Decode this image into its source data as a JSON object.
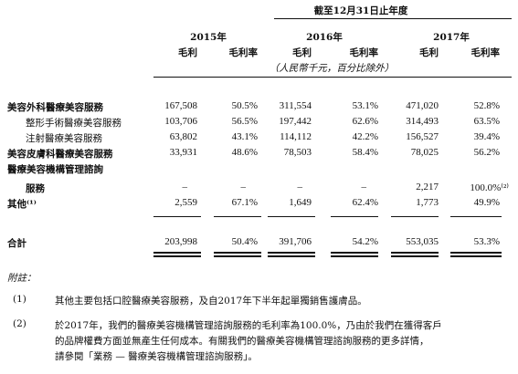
{
  "header": {
    "period_title": "截至12月31日止年度",
    "units": "（人民幣千元，百分比除外）",
    "years": [
      "2015年",
      "2016年",
      "2017年"
    ],
    "col_labels": [
      "毛利",
      "毛利率",
      "毛利",
      "毛利率",
      "毛利",
      "毛利率"
    ]
  },
  "rows": [
    {
      "label": "美容外科醫療美容服務",
      "bold": true,
      "values": [
        "167,508",
        "50.5%",
        "311,554",
        "53.1%",
        "471,020",
        "52.8%"
      ]
    },
    {
      "label": "整形手術醫療美容服務",
      "bold": false,
      "indent": 1,
      "values": [
        "103,706",
        "56.5%",
        "197,442",
        "62.6%",
        "314,493",
        "63.5%"
      ]
    },
    {
      "label": "注射醫療美容服務",
      "bold": false,
      "indent": 1,
      "values": [
        "63,802",
        "43.1%",
        "114,112",
        "42.2%",
        "156,527",
        "39.4%"
      ]
    },
    {
      "label": "美容皮膚科醫療美容服務",
      "bold": true,
      "values": [
        "33,931",
        "48.6%",
        "78,503",
        "58.4%",
        "78,025",
        "56.2%"
      ]
    },
    {
      "label": "醫療美容機構管理諮詢",
      "bold": true,
      "values": []
    },
    {
      "label": "服務",
      "bold": true,
      "indent": 1,
      "values": [
        "–",
        "–",
        "–",
        "–",
        "2,217",
        "100.0%⁽²⁾"
      ]
    },
    {
      "label": "其他⁽¹⁾",
      "bold": true,
      "values": [
        "2,559",
        "67.1%",
        "1,649",
        "62.4%",
        "1,773",
        "49.9%"
      ]
    }
  ],
  "total": {
    "label": "合計",
    "values": [
      "203,998",
      "50.4%",
      "391,706",
      "54.2%",
      "553,035",
      "53.3%"
    ]
  },
  "notes": {
    "heading": "附註：",
    "items": [
      {
        "marker": "(1)",
        "lines": [
          "其他主要包括口腔醫療美容服務，及自2017年下半年起單獨銷售護膚品。"
        ]
      },
      {
        "marker": "(2)",
        "lines": [
          "於2017年，我們的醫療美容機構管理諮詢服務的毛利率為100.0%，乃由於我們在獲得客戶",
          "的品牌權費方面並無產生任何成本。有關我們的醫療美容機構管理諮詢服務的更多詳情，",
          "請參閱「業務 — 醫療美容機構管理諮詢服務」。"
        ]
      }
    ]
  }
}
